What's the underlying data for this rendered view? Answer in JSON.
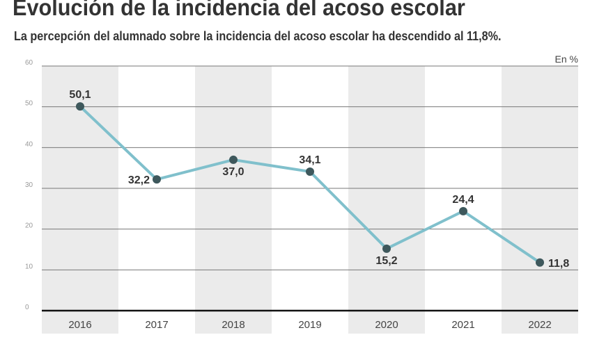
{
  "chart_data": {
    "type": "line",
    "title": "Evolución de la incidencia del acoso escolar",
    "subtitle": "La percepción del alumnado sobre la incidencia del acoso escolar ha descendido al 11,8%.",
    "unit_label": "En %",
    "categories": [
      "2016",
      "2017",
      "2018",
      "2019",
      "2020",
      "2021",
      "2022"
    ],
    "values": [
      50.1,
      32.2,
      37.0,
      34.1,
      15.2,
      24.4,
      11.8
    ],
    "data_labels": [
      "50,1",
      "32,2",
      "37,0",
      "34,1",
      "15,2",
      "24,4",
      "11,8"
    ],
    "yticks": [
      0,
      10,
      20,
      30,
      40,
      50,
      60
    ],
    "ylim": [
      0,
      60
    ],
    "grid": true,
    "colors": {
      "line": "#80c0cc",
      "marker": "#3e585c",
      "band": "#ebebeb",
      "text": "#333333"
    }
  }
}
